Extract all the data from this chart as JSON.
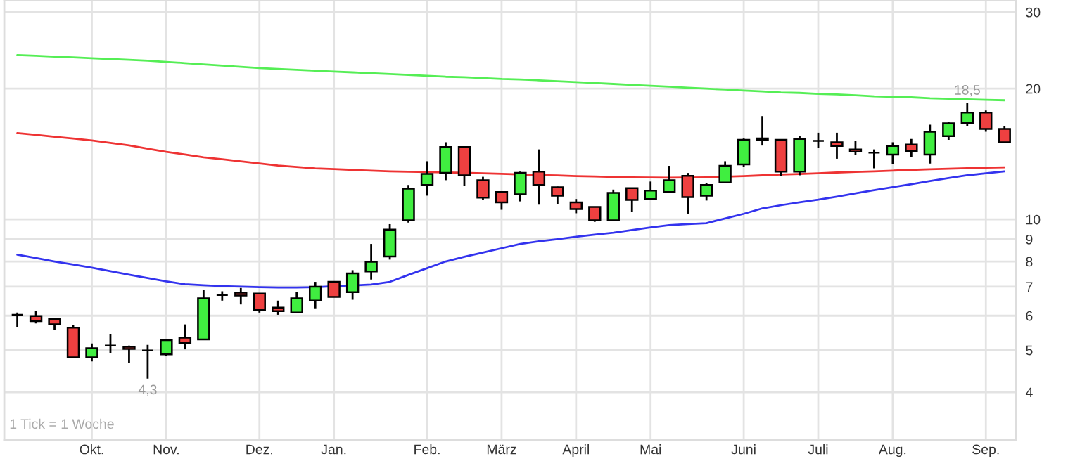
{
  "chart_data": {
    "type": "candlestick",
    "categories": [
      null,
      null,
      null,
      null,
      "Okt.",
      null,
      null,
      null,
      "Nov.",
      null,
      null,
      null,
      null,
      "Dez.",
      null,
      null,
      null,
      "Jan.",
      null,
      null,
      null,
      null,
      "Feb.",
      null,
      null,
      null,
      "März",
      null,
      null,
      null,
      "April",
      null,
      null,
      null,
      "Mai",
      null,
      null,
      null,
      null,
      "Juni",
      null,
      null,
      null,
      "Juli",
      null,
      null,
      null,
      "Aug.",
      null,
      null,
      null,
      null,
      "Sep.",
      null
    ],
    "ohlc": [
      [
        6.03,
        6.1,
        5.66,
        6.03
      ],
      [
        5.99,
        6.15,
        5.76,
        5.83
      ],
      [
        5.9,
        5.92,
        5.56,
        5.73
      ],
      [
        5.63,
        5.7,
        4.81,
        4.81
      ],
      [
        4.81,
        5.18,
        4.71,
        5.05
      ],
      [
        5.12,
        5.45,
        4.93,
        5.12
      ],
      [
        5.09,
        5.12,
        4.67,
        5.03
      ],
      [
        4.99,
        5.14,
        4.3,
        4.99
      ],
      [
        4.89,
        5.27,
        4.85,
        5.27
      ],
      [
        5.34,
        5.73,
        5.02,
        5.19
      ],
      [
        5.29,
        6.87,
        5.29,
        6.58
      ],
      [
        6.7,
        6.83,
        6.5,
        6.7
      ],
      [
        6.78,
        6.95,
        6.37,
        6.68
      ],
      [
        6.75,
        6.75,
        6.1,
        6.18
      ],
      [
        6.26,
        6.5,
        6.03,
        6.15
      ],
      [
        6.1,
        6.8,
        6.1,
        6.58
      ],
      [
        6.5,
        7.18,
        6.24,
        7.0
      ],
      [
        7.18,
        7.2,
        6.63,
        6.63
      ],
      [
        6.8,
        7.64,
        6.53,
        7.51
      ],
      [
        7.59,
        8.78,
        7.27,
        7.99
      ],
      [
        8.21,
        9.75,
        8.08,
        9.47
      ],
      [
        9.95,
        12.0,
        9.83,
        11.77
      ],
      [
        12.0,
        13.61,
        11.34,
        12.72
      ],
      [
        12.79,
        15.05,
        12.31,
        14.68
      ],
      [
        14.68,
        14.7,
        11.92,
        12.63
      ],
      [
        12.31,
        12.53,
        11.07,
        11.22
      ],
      [
        11.56,
        11.6,
        10.52,
        10.94
      ],
      [
        11.42,
        12.88,
        11.0,
        12.79
      ],
      [
        12.88,
        14.49,
        10.81,
        12.0
      ],
      [
        11.86,
        11.9,
        10.86,
        11.34
      ],
      [
        10.94,
        11.14,
        10.33,
        10.56
      ],
      [
        10.68,
        10.7,
        9.87,
        9.95
      ],
      [
        9.95,
        11.71,
        9.95,
        11.51
      ],
      [
        11.8,
        11.8,
        10.41,
        11.09
      ],
      [
        11.14,
        12.22,
        11.09,
        11.65
      ],
      [
        11.56,
        13.28,
        11.5,
        12.31
      ],
      [
        12.6,
        12.79,
        10.31,
        11.25
      ],
      [
        11.34,
        12.1,
        11.05,
        12.0
      ],
      [
        12.16,
        13.61,
        12.16,
        13.28
      ],
      [
        13.38,
        15.35,
        13.21,
        15.24
      ],
      [
        15.25,
        17.29,
        14.79,
        15.36
      ],
      [
        15.24,
        15.3,
        12.56,
        12.88
      ],
      [
        12.88,
        15.55,
        12.63,
        15.32
      ],
      [
        15.16,
        15.83,
        14.6,
        15.16
      ],
      [
        15.05,
        15.83,
        13.79,
        14.76
      ],
      [
        14.49,
        15.16,
        14.06,
        14.32
      ],
      [
        14.24,
        14.49,
        13.11,
        14.24
      ],
      [
        14.1,
        15.05,
        13.38,
        14.76
      ],
      [
        14.87,
        15.32,
        13.89,
        14.38
      ],
      [
        14.1,
        16.52,
        13.44,
        15.91
      ],
      [
        15.55,
        16.77,
        15.24,
        16.64
      ],
      [
        16.68,
        18.5,
        16.43,
        17.62
      ],
      [
        17.62,
        17.81,
        15.91,
        16.15
      ],
      [
        16.15,
        16.43,
        14.98,
        15.05
      ]
    ],
    "colors": [
      "#000000",
      "#ee4040",
      "#ee4040",
      "#ee4040",
      "#40ee40",
      "#000000",
      "#ee4040",
      "#000000",
      "#40ee40",
      "#ee4040",
      "#40ee40",
      "#000000",
      "#ee4040",
      "#ee4040",
      "#ee4040",
      "#40ee40",
      "#40ee40",
      "#ee4040",
      "#40ee40",
      "#40ee40",
      "#40ee40",
      "#40ee40",
      "#40ee40",
      "#40ee40",
      "#ee4040",
      "#ee4040",
      "#ee4040",
      "#40ee40",
      "#ee4040",
      "#ee4040",
      "#ee4040",
      "#ee4040",
      "#40ee40",
      "#ee4040",
      "#40ee40",
      "#40ee40",
      "#ee4040",
      "#40ee40",
      "#40ee40",
      "#40ee40",
      "#000000",
      "#ee4040",
      "#40ee40",
      "#000000",
      "#ee4040",
      "#ee4040",
      "#000000",
      "#40ee40",
      "#ee4040",
      "#40ee40",
      "#40ee40",
      "#40ee40",
      "#ee4040",
      "#ee4040"
    ],
    "series": [
      {
        "type": "line",
        "color": "#55ee55",
        "values": [
          23.9,
          23.8,
          23.7,
          23.6,
          23.5,
          23.4,
          23.3,
          23.2,
          23.05,
          22.9,
          22.75,
          22.6,
          22.45,
          22.3,
          22.2,
          22.1,
          22.0,
          21.9,
          21.8,
          21.7,
          21.6,
          21.5,
          21.4,
          21.3,
          21.25,
          21.15,
          21.05,
          21.0,
          20.9,
          20.8,
          20.7,
          20.6,
          20.5,
          20.4,
          20.3,
          20.2,
          20.1,
          20.0,
          19.9,
          19.8,
          19.7,
          19.6,
          19.55,
          19.45,
          19.4,
          19.3,
          19.2,
          19.15,
          19.1,
          19.0,
          18.95,
          18.9,
          18.85,
          18.8
        ]
      },
      {
        "type": "line",
        "color": "#ee3333",
        "values": [
          15.8,
          15.65,
          15.5,
          15.35,
          15.2,
          15.0,
          14.8,
          14.55,
          14.3,
          14.1,
          13.9,
          13.75,
          13.6,
          13.45,
          13.3,
          13.2,
          13.1,
          13.05,
          13.0,
          12.95,
          12.9,
          12.87,
          12.85,
          null,
          12.8,
          12.77,
          12.73,
          null,
          12.65,
          12.62,
          12.58,
          12.55,
          12.52,
          12.5,
          12.48,
          12.47,
          12.48,
          12.5,
          null,
          12.58,
          12.63,
          12.68,
          12.72,
          12.77,
          12.82,
          12.86,
          12.9,
          12.95,
          13.0,
          13.04,
          13.08,
          13.12,
          13.15,
          13.18
        ]
      },
      {
        "type": "line",
        "color": "#3333ee",
        "values": [
          8.29,
          8.15,
          8.0,
          7.87,
          7.74,
          7.6,
          7.46,
          7.33,
          7.2,
          7.09,
          7.05,
          7.02,
          7.0,
          6.98,
          6.97,
          6.97,
          6.98,
          null,
          null,
          7.08,
          7.18,
          7.45,
          7.72,
          8.0,
          8.2,
          8.39,
          8.58,
          8.78,
          8.9,
          9.0,
          9.12,
          9.22,
          9.32,
          9.45,
          9.58,
          9.7,
          9.75,
          9.8,
          10.05,
          10.3,
          10.6,
          10.78,
          10.95,
          11.1,
          11.28,
          11.48,
          11.67,
          11.86,
          12.05,
          12.25,
          12.45,
          12.63,
          12.77,
          12.9
        ]
      }
    ],
    "log": true,
    "ylim": [
      3.1,
      32
    ],
    "yticks": [
      4,
      5,
      6,
      7,
      8,
      9,
      10,
      20,
      30
    ],
    "grid": true,
    "annotations": [
      {
        "text": "4,3",
        "y": 4.3
      },
      {
        "text": "18,5",
        "y": 18.5
      },
      "1 Tick = 1 Woche"
    ]
  }
}
